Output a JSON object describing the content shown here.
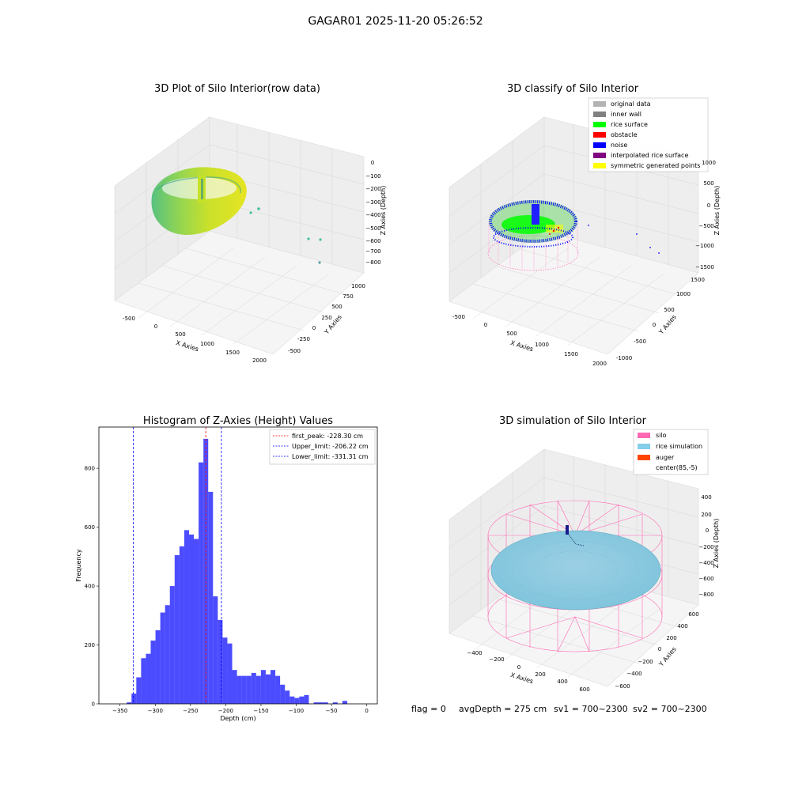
{
  "figure": {
    "title": "GAGAR01 2025-11-20 05:26:52",
    "footer": {
      "flag": "flag = 0",
      "avg_depth": "avgDepth = 275 cm",
      "sv1": "sv1 = 700~2300",
      "sv2": "sv2 = 700~2300"
    }
  },
  "chart_data": [
    {
      "type": "scatter",
      "title": "3D Plot of Silo Interior(row data)",
      "xlabel": "X Axies",
      "ylabel": "Y Axies",
      "zlabel": "Z Axies (Depth)",
      "x_ticks": [
        "-500",
        "0",
        "500",
        "1000",
        "1500",
        "2000"
      ],
      "y_ticks": [
        "-500",
        "-250",
        "0",
        "250",
        "500",
        "750",
        "1000"
      ],
      "z_ticks": [
        "0",
        "−100",
        "−200",
        "−300",
        "−400",
        "−500",
        "−600",
        "−700",
        "−800"
      ],
      "colormap": "viridis"
    },
    {
      "type": "scatter",
      "title": "3D classify of Silo Interior",
      "xlabel": "X Axies",
      "ylabel": "Y Axies",
      "zlabel": "Z Axies (Depth)",
      "x_ticks": [
        "-500",
        "0",
        "500",
        "1000",
        "1500",
        "2000"
      ],
      "y_ticks": [
        "-1000",
        "-500",
        "0",
        "500",
        "1000",
        "1500"
      ],
      "z_ticks": [
        "1000",
        "500",
        "0",
        "−500",
        "−1000",
        "−1500"
      ],
      "legend": [
        {
          "label": "original data",
          "color": "#b3b3b3"
        },
        {
          "label": "inner wall",
          "color": "#808080"
        },
        {
          "label": "rice surface",
          "color": "#00ff00"
        },
        {
          "label": "obstacle",
          "color": "#ff0000"
        },
        {
          "label": "noise",
          "color": "#0000ff"
        },
        {
          "label": "interpolated rice surface",
          "color": "#800080"
        },
        {
          "label": "symmetric generated points",
          "color": "#ffff00"
        }
      ]
    },
    {
      "type": "bar",
      "title": "Histogram of Z-Axies (Height) Values",
      "xlabel": "Depth (cm)",
      "ylabel": "Frequency",
      "xlim": [
        -380,
        15
      ],
      "ylim": [
        0,
        940
      ],
      "x_ticks": [
        "−350",
        "−300",
        "−250",
        "−200",
        "−150",
        "−100",
        "−50",
        "0"
      ],
      "x_tick_values": [
        -350,
        -300,
        -250,
        -200,
        -150,
        -100,
        -50,
        0
      ],
      "y_ticks": [
        "0",
        "200",
        "400",
        "600",
        "800"
      ],
      "y_tick_values": [
        0,
        200,
        400,
        600,
        800
      ],
      "bin_width": 6.8,
      "bin_start": -340.5,
      "values": [
        5,
        35,
        90,
        155,
        170,
        215,
        250,
        310,
        335,
        400,
        505,
        535,
        590,
        575,
        560,
        820,
        900,
        720,
        365,
        285,
        225,
        205,
        115,
        95,
        95,
        95,
        105,
        95,
        115,
        100,
        115,
        95,
        65,
        45,
        25,
        20,
        25,
        30,
        0,
        5,
        5,
        5,
        0,
        5,
        0,
        10
      ],
      "bar_color": "#0000ff",
      "vlines": [
        {
          "label": "first_peak: -228.30 cm",
          "x": -228.3,
          "color": "#ff0000"
        },
        {
          "label": "Upper_limit: -206.22 cm",
          "x": -206.22,
          "color": "#0000ff"
        },
        {
          "label": "Lower_limit: -331.31 cm",
          "x": -331.31,
          "color": "#0000ff"
        }
      ]
    },
    {
      "type": "surface",
      "title": "3D simulation of Silo Interior",
      "xlabel": "X Axies",
      "ylabel": "Y Axies",
      "zlabel": "Z Axies (Depth)",
      "x_ticks": [
        "−400",
        "−200",
        "0",
        "200",
        "400",
        "600"
      ],
      "y_ticks": [
        "−600",
        "−400",
        "−200",
        "0",
        "200",
        "400",
        "600"
      ],
      "z_ticks": [
        "400",
        "200",
        "0",
        "−200",
        "−400",
        "−600",
        "−800"
      ],
      "legend": [
        {
          "label": "silo",
          "color": "#ff69b4"
        },
        {
          "label": "rice simulation",
          "color": "#87ceeb"
        },
        {
          "label": "auger",
          "color": "#ff4500"
        },
        {
          "label": "center(85,-5)",
          "color": ""
        }
      ]
    }
  ]
}
